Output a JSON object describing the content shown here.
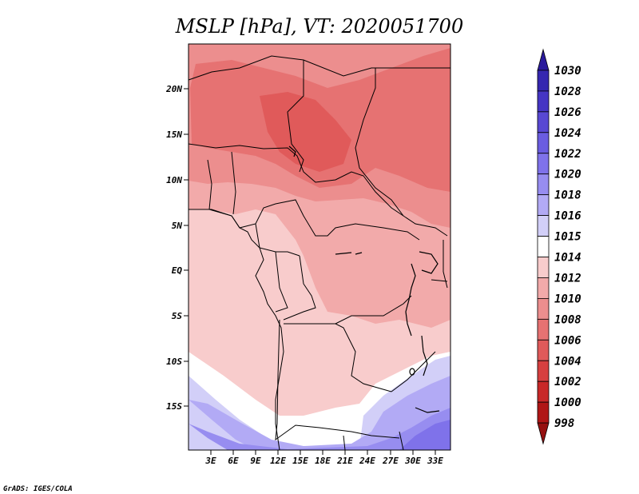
{
  "title": "MSLP [hPa], VT: 2020051700",
  "credit": "GrADS: IGES/COLA",
  "lat_labels": [
    "20N",
    "15N",
    "10N",
    "5N",
    "EQ",
    "5S",
    "10S",
    "15S"
  ],
  "lon_labels": [
    "3E",
    "6E",
    "9E",
    "12E",
    "15E",
    "18E",
    "21E",
    "24E",
    "27E",
    "30E",
    "33E"
  ],
  "colorbar": {
    "levels": [
      "1030",
      "1028",
      "1026",
      "1024",
      "1022",
      "1020",
      "1018",
      "1016",
      "1015",
      "1014",
      "1012",
      "1010",
      "1008",
      "1006",
      "1004",
      "1002",
      "1000",
      "998"
    ],
    "colors": [
      "#2a1a9c",
      "#3527b0",
      "#4535c4",
      "#5848d3",
      "#6a5ce0",
      "#7f72ea",
      "#978df0",
      "#b2aaf5",
      "#d2cff8",
      "#ffffff",
      "#f8cccc",
      "#f2aaaa",
      "#ec8e8e",
      "#e67272",
      "#e05a5a",
      "#d64040",
      "#c82828",
      "#b01616",
      "#951010"
    ]
  }
}
